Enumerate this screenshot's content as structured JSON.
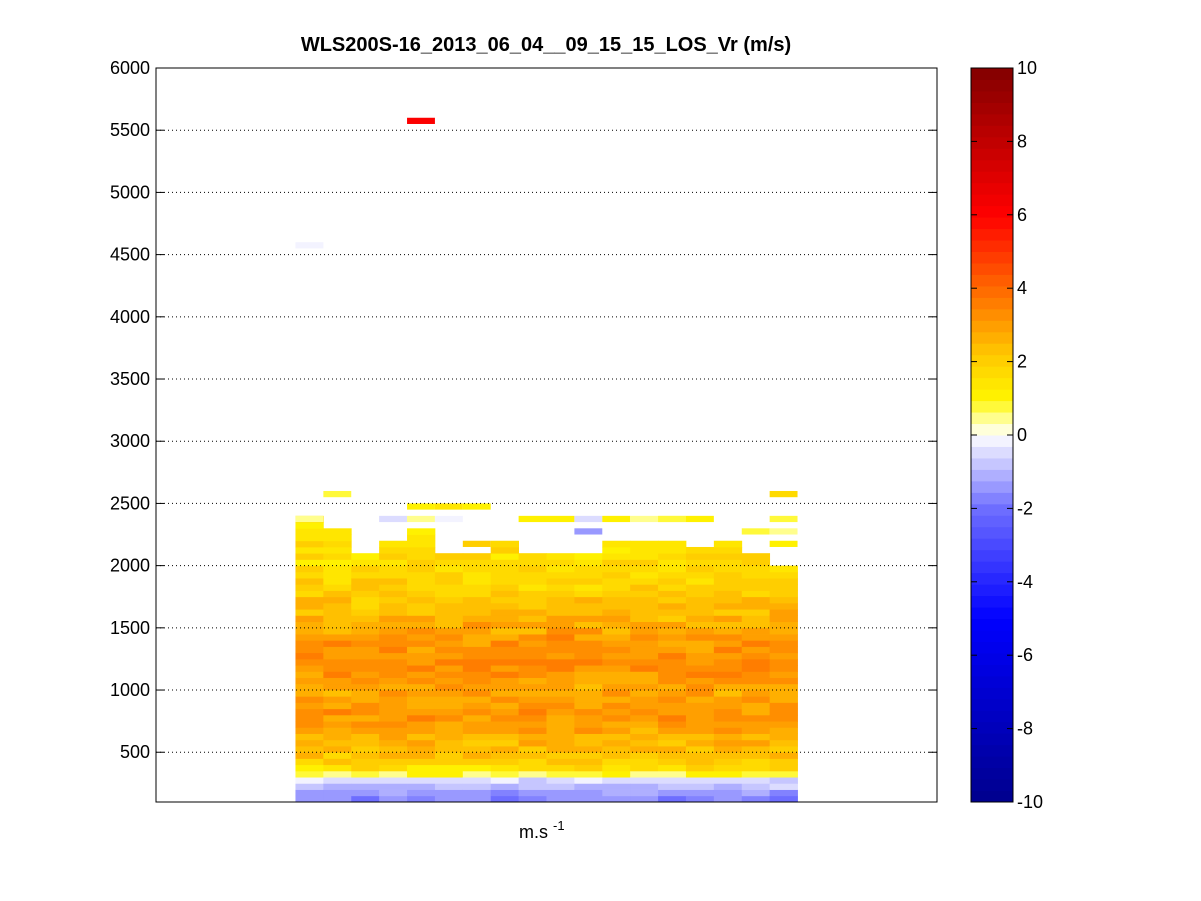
{
  "chart_data": {
    "type": "heatmap",
    "title": "WLS200S-16_2013_06_04__09_15_15_LOS_Vr (m/s)",
    "xlabel_base": "m.s",
    "xlabel_sup": "-1",
    "ylabel": "",
    "ylim": [
      100,
      6000
    ],
    "xlim": [
      0,
      28
    ],
    "yticks": [
      500,
      1000,
      1500,
      2000,
      2500,
      3000,
      3500,
      4000,
      4500,
      5000,
      5500,
      6000
    ],
    "grid": "horizontal dotted",
    "colorbar": {
      "range": [
        -10,
        10
      ],
      "ticks": [
        -10,
        -8,
        -6,
        -4,
        -2,
        0,
        2,
        4,
        6,
        8,
        10
      ],
      "colormap": "blue-white-yellow-red",
      "levels": 64
    },
    "columns": 18,
    "column_start": 5,
    "bin_height": 50,
    "profile": [
      {
        "z": 100,
        "v": -1.8
      },
      {
        "z": 150,
        "v": -1.5
      },
      {
        "z": 200,
        "v": -1.1
      },
      {
        "z": 250,
        "v": -0.7
      },
      {
        "z": 290,
        "v": -0.3
      },
      {
        "z": 330,
        "v": 0.9
      },
      {
        "z": 400,
        "v": 1.9
      },
      {
        "z": 500,
        "v": 2.3
      },
      {
        "z": 600,
        "v": 2.5
      },
      {
        "z": 700,
        "v": 3.0
      },
      {
        "z": 800,
        "v": 3.1
      },
      {
        "z": 900,
        "v": 2.9
      },
      {
        "z": 1000,
        "v": 2.8
      },
      {
        "z": 1100,
        "v": 3.0
      },
      {
        "z": 1200,
        "v": 3.3
      },
      {
        "z": 1300,
        "v": 3.2
      },
      {
        "z": 1400,
        "v": 3.1
      },
      {
        "z": 1500,
        "v": 2.8
      },
      {
        "z": 1600,
        "v": 2.5
      },
      {
        "z": 1700,
        "v": 2.2
      },
      {
        "z": 1800,
        "v": 2.0
      },
      {
        "z": 1900,
        "v": 1.8
      },
      {
        "z": 2000,
        "v": 1.6
      },
      {
        "z": 2100,
        "v": 1.6
      },
      {
        "z": 2200,
        "v": 1.5
      },
      {
        "z": 2300,
        "v": 1.5
      },
      {
        "z": 2400,
        "v": 1.2
      }
    ],
    "column_tops": [
      2400,
      2300,
      2100,
      2200,
      2300,
      2100,
      2100,
      2200,
      2100,
      2100,
      2100,
      2200,
      2200,
      2200,
      2150,
      2200,
      2100,
      2000
    ],
    "scattered_cells": [
      {
        "col": 0,
        "z": 2350,
        "v": 0.6
      },
      {
        "col": 1,
        "z": 2550,
        "v": 0.9
      },
      {
        "col": 3,
        "z": 2350,
        "v": -0.6
      },
      {
        "col": 4,
        "z": 2450,
        "v": 1.1
      },
      {
        "col": 4,
        "z": 2350,
        "v": 0.5
      },
      {
        "col": 5,
        "z": 2450,
        "v": 1.4
      },
      {
        "col": 5,
        "z": 2350,
        "v": -0.3
      },
      {
        "col": 6,
        "z": 2450,
        "v": 1.0
      },
      {
        "col": 6,
        "z": 2150,
        "v": 2.0
      },
      {
        "col": 8,
        "z": 2350,
        "v": 1.0
      },
      {
        "col": 9,
        "z": 2350,
        "v": 1.2
      },
      {
        "col": 10,
        "z": 2350,
        "v": -0.6
      },
      {
        "col": 10,
        "z": 2250,
        "v": -1.5
      },
      {
        "col": 11,
        "z": 2350,
        "v": 1.1
      },
      {
        "col": 12,
        "z": 2350,
        "v": 0.5
      },
      {
        "col": 13,
        "z": 2350,
        "v": 0.6
      },
      {
        "col": 13,
        "z": 2350,
        "v": 0.7
      },
      {
        "col": 14,
        "z": 2350,
        "v": 1.0
      },
      {
        "col": 16,
        "z": 2250,
        "v": 0.9
      },
      {
        "col": 17,
        "z": 2350,
        "v": 0.9
      },
      {
        "col": 17,
        "z": 2250,
        "v": 0.5
      },
      {
        "col": 17,
        "z": 2550,
        "v": 1.7
      },
      {
        "col": 17,
        "z": 2150,
        "v": 1.1
      },
      {
        "col": 0,
        "z": 4550,
        "v": -0.3
      },
      {
        "col": 4,
        "z": 5550,
        "v": 6.1
      }
    ]
  }
}
